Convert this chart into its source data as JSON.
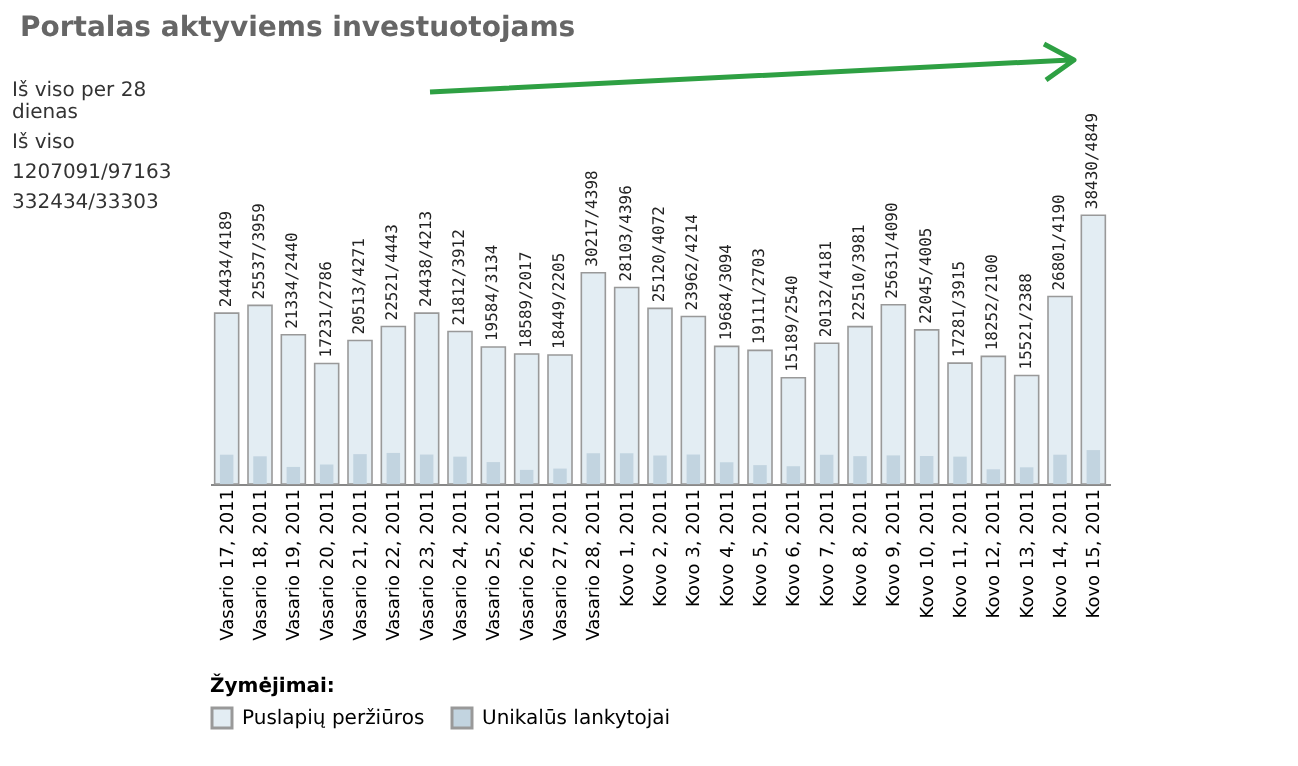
{
  "chart_data": {
    "type": "bar",
    "title": "Portalas aktyviems investuotojams",
    "tick_labels": "x",
    "categories": [
      "Vasario 17, 2011",
      "Vasario 18, 2011",
      "Vasario 19, 2011",
      "Vasario 20, 2011",
      "Vasario 21, 2011",
      "Vasario 22, 2011",
      "Vasario 23, 2011",
      "Vasario 24, 2011",
      "Vasario 25, 2011",
      "Vasario 26, 2011",
      "Vasario 27, 2011",
      "Vasario 28, 2011",
      "Kovo 1, 2011",
      "Kovo 2, 2011",
      "Kovo 3, 2011",
      "Kovo 4, 2011",
      "Kovo 5, 2011",
      "Kovo 6, 2011",
      "Kovo 7, 2011",
      "Kovo 8, 2011",
      "Kovo 9, 2011",
      "Kovo 10, 2011",
      "Kovo 11, 2011",
      "Kovo 12, 2011",
      "Kovo 13, 2011",
      "Kovo 14, 2011",
      "Kovo 15, 2011"
    ],
    "legend_title": "Žymėjimai:",
    "legend": "bottom left",
    "series": [
      {
        "name": "Puslapių peržiūros",
        "color": "#e3edf3",
        "values": [
          24434,
          25537,
          21334,
          17231,
          20513,
          22521,
          24438,
          21812,
          19584,
          18589,
          18449,
          30217,
          28103,
          25120,
          23962,
          19684,
          19111,
          15189,
          20132,
          22510,
          25631,
          22045,
          17281,
          18252,
          15521,
          26801,
          38430
        ],
        "value_labels": [
          "24434/4189",
          "25537/3959",
          "21334/2440",
          "17231/2786",
          "20513/4271",
          "22521/4443",
          "24438/4213",
          "21812/3912",
          "19584/3134",
          "18589/2017",
          "18449/2205",
          "30217/4398",
          "28103/4396",
          "25120/4072",
          "23962/4214",
          "19684/3094",
          "19111/2703",
          "15189/2540",
          "20132/4181",
          "22510/3981",
          "25631/4090",
          "22045/4005",
          "17281/3915",
          "18252/2100",
          "15521/2388",
          "26801/4190",
          "38430/4849"
        ]
      },
      {
        "name": "Unikalūs lankytojai",
        "color": "#c2d4e0",
        "values": [
          4189,
          3959,
          2440,
          2786,
          4271,
          4443,
          4213,
          3912,
          3134,
          2017,
          2205,
          4398,
          4396,
          4072,
          4214,
          3094,
          2703,
          2540,
          4181,
          3981,
          4090,
          4005,
          3915,
          2100,
          2388,
          4190,
          4849
        ]
      }
    ],
    "annotations": [
      "Iš viso per 28 dienas",
      "Iš viso",
      "1207091/97163",
      "332434/33303"
    ]
  }
}
